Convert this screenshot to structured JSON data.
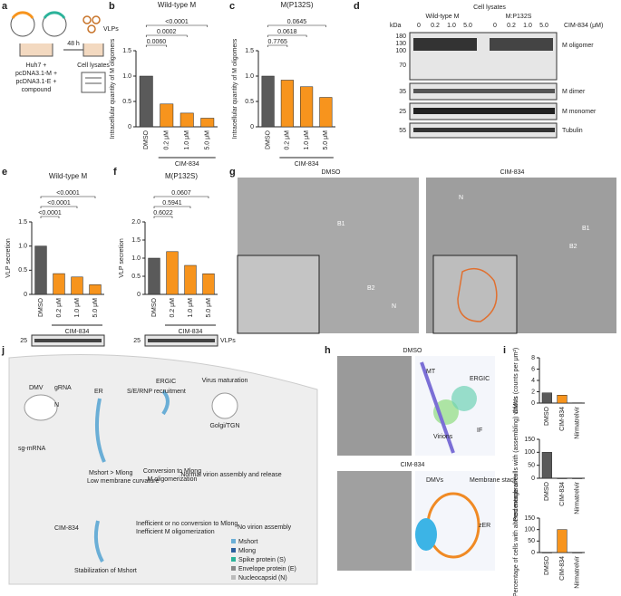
{
  "chart_data": [
    {
      "type": "bar",
      "panel": "b",
      "title": "Wild-type M",
      "ylabel": "Intracellular quantity of M oligomers",
      "categories": [
        "DMSO",
        "0.2 μM",
        "1.0 μM",
        "5.0 μM"
      ],
      "values": [
        1.0,
        0.45,
        0.27,
        0.17
      ],
      "colors": [
        "#5a5a5a",
        "#f7941d",
        "#f7941d",
        "#f7941d"
      ],
      "ylim": [
        0,
        1.5
      ],
      "yticks": [
        0,
        0.5,
        {
          "value": 1,
          "label": "1.0"
        },
        1.5
      ],
      "p_values": [
        "0.0060",
        "0.0002",
        "<0.0001"
      ],
      "group_label": "CIM-834"
    },
    {
      "type": "bar",
      "panel": "c",
      "title": "M(P132S)",
      "ylabel": "Intracellular quantity of M oligomers",
      "categories": [
        "DMSO",
        "0.2 μM",
        "1.0 μM",
        "5.0 μM"
      ],
      "values": [
        1.0,
        0.92,
        0.79,
        0.58
      ],
      "colors": [
        "#5a5a5a",
        "#f7941d",
        "#f7941d",
        "#f7941d"
      ],
      "ylim": [
        0,
        1.5
      ],
      "yticks": [
        0,
        0.5,
        {
          "value": 1,
          "label": "1.0"
        },
        1.5
      ],
      "p_values": [
        "0.7765",
        "0.0618",
        "0.0645"
      ],
      "group_label": "CIM-834"
    },
    {
      "type": "bar",
      "panel": "e",
      "title": "Wild-type M",
      "ylabel": "VLP secretion",
      "categories": [
        "DMSO",
        "0.2 μM",
        "1.0 μM",
        "5.0 μM"
      ],
      "values": [
        1.0,
        0.43,
        0.36,
        0.2
      ],
      "colors": [
        "#5a5a5a",
        "#f7941d",
        "#f7941d",
        "#f7941d"
      ],
      "ylim": [
        0,
        1.5
      ],
      "yticks": [
        0,
        0.5,
        {
          "value": 1,
          "label": "1.0"
        },
        1.5
      ],
      "p_values": [
        "<0.0001",
        "<0.0001",
        "<0.0001"
      ],
      "group_label": "CIM-834"
    },
    {
      "type": "bar",
      "panel": "f",
      "title": "M(P132S)",
      "ylabel": "VLP secretion",
      "categories": [
        "DMSO",
        "0.2 μM",
        "1.0 μM",
        "5.0 μM"
      ],
      "values": [
        1.0,
        1.18,
        0.8,
        0.57
      ],
      "colors": [
        "#5a5a5a",
        "#f7941d",
        "#f7941d",
        "#f7941d"
      ],
      "ylim": [
        0,
        2
      ],
      "yticks": [
        0,
        0.5,
        {
          "value": 1,
          "label": "1.0"
        },
        1.5,
        {
          "value": 2,
          "label": "2.0"
        }
      ],
      "p_values": [
        "0.6022",
        "0.5941",
        "0.0607"
      ],
      "group_label": "CIM-834"
    },
    {
      "type": "bar",
      "panel": "i",
      "ylabel": "DMVs (counts per μm²)",
      "categories": [
        "DMSO",
        "CIM-834",
        "Nirmatrelvir"
      ],
      "values": [
        1.8,
        1.4,
        0.05
      ],
      "colors": [
        "#5a5a5a",
        "#f7941d",
        "#5a5a5a"
      ],
      "ylim": [
        0,
        8
      ],
      "yticks": [
        0,
        2,
        4,
        6,
        8
      ]
    },
    {
      "type": "bar",
      "panel": "i",
      "ylabel": "Percentage of cells with (assembling) virions",
      "categories": [
        "DMSO",
        "CIM-834",
        "Nirmatrelvir"
      ],
      "values": [
        100,
        0,
        0
      ],
      "colors": [
        "#5a5a5a",
        "#f7941d",
        "#5a5a5a"
      ],
      "ylim": [
        0,
        150
      ],
      "yticks": [
        0,
        50,
        100,
        150
      ]
    },
    {
      "type": "bar",
      "panel": "i",
      "ylabel": "Percentage of cells with altered membranes",
      "categories": [
        "DMSO",
        "CIM-834",
        "Nirmatrelvir"
      ],
      "values": [
        0,
        100,
        0
      ],
      "colors": [
        "#5a5a5a",
        "#f7941d",
        "#5a5a5a"
      ],
      "ylim": [
        0,
        150
      ],
      "yticks": [
        0,
        50,
        100,
        150
      ]
    }
  ],
  "letters": [
    "a",
    "b",
    "c",
    "d",
    "e",
    "f",
    "g",
    "h",
    "i",
    "j"
  ],
  "panel_a": {
    "huh7": "Huh7 +",
    "m": "pcDNA3.1-M +",
    "e": "pcDNA3.1-E +",
    "compound": "compound",
    "time": "48 h",
    "vlps": "VLPs",
    "lysates": "Cell lysates"
  },
  "panel_d": {
    "title": "Cell lysates",
    "kda": "kDa",
    "wt": "Wild-type M",
    "mut": "M:P132S",
    "drug": "CIM-834 (μM)",
    "lanes": [
      "0",
      "0.2",
      "1.0",
      "5.0"
    ],
    "markers": [
      "180",
      "130",
      "100",
      "70",
      "35",
      "25",
      "55"
    ],
    "bands": [
      "M oligomer",
      "M dimer",
      "M monomer",
      "Tubulin"
    ]
  },
  "blot_ef": {
    "marker": "25",
    "label": "VLPs"
  },
  "panel_g": {
    "left": "DMSO",
    "right": "CIM-834",
    "n": "N",
    "b1": "B1",
    "b2": "B2"
  },
  "panel_h": {
    "top": "DMSO",
    "mt": "MT",
    "ergic": "ERGIC",
    "virions": "Virions",
    "if": "IF",
    "bottom": "CIM-834",
    "dmvs": "DMVs",
    "stack": "Membrane stack",
    "zer": "zER"
  },
  "panel_j": {
    "dmv": "DMV",
    "grna": "gRNA",
    "n": "N",
    "er": "ER",
    "ergic": "ERGIC",
    "recruit": "S/E/RNP recruitment",
    "maturation": "Virus maturation",
    "golgi": "Golgi/TGN",
    "sgmrna": "sg-mRNA",
    "ratio": "Mshort > Mlong",
    "curv": "Low membrane curvature",
    "conv": "Conversion to Mlong",
    "olig": "M oligomerization",
    "normal": "Normal virion assembly and release",
    "drug": "CIM-834",
    "stab": "Stabilization of Mshort",
    "ineff1": "Inefficient or no conversion to Mlong",
    "ineff2": "Inefficient M oligomerization",
    "none": "No virion assembly",
    "legend": [
      "Mshort",
      "Mlong",
      "Spike protein (S)",
      "Envelope protein (E)",
      "Nucleocapsid (N)"
    ]
  }
}
